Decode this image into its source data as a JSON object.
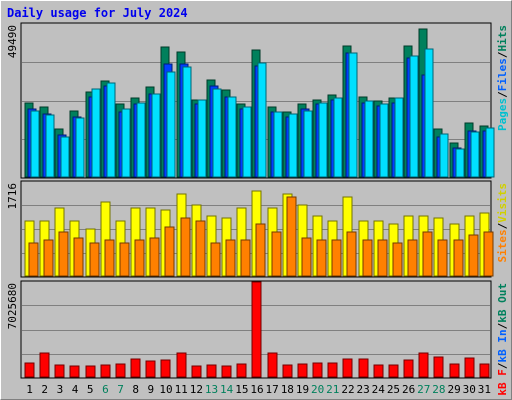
{
  "title": "Daily usage for July 2024",
  "colors": {
    "hits": "#00805c",
    "files": "#0040ff",
    "pages": "#00e0ff",
    "visits": "#ffff00",
    "sites": "#ff8000",
    "kbout": "#ff0000",
    "separator": "#000000",
    "weekend_label": "#00805c"
  },
  "panels": {
    "top": {
      "scale_label": "49490",
      "legend": [
        {
          "text": "Pages",
          "color": "#00c0d0"
        },
        {
          "text": "/",
          "color": "#000000"
        },
        {
          "text": "Files",
          "color": "#0060ff"
        },
        {
          "text": "/",
          "color": "#000000"
        },
        {
          "text": "Hits",
          "color": "#00805c"
        }
      ]
    },
    "mid": {
      "scale_label": "1716",
      "legend": [
        {
          "text": "Sites",
          "color": "#ff8000"
        },
        {
          "text": "/",
          "color": "#000000"
        },
        {
          "text": "Visits",
          "color": "#d0d000"
        }
      ]
    },
    "bottom": {
      "scale_label": "7025680",
      "legend": [
        {
          "text": "kB F",
          "color": "#ff0000"
        },
        {
          "text": "/",
          "color": "#000000"
        },
        {
          "text": "kB In",
          "color": "#0060ff"
        },
        {
          "text": "/",
          "color": "#000000"
        },
        {
          "text": "kB Out",
          "color": "#00805c"
        }
      ]
    }
  },
  "chart_data": {
    "type": "bar",
    "categories": [
      "1",
      "2",
      "3",
      "4",
      "5",
      "6",
      "7",
      "8",
      "9",
      "10",
      "11",
      "12",
      "13",
      "14",
      "15",
      "16",
      "17",
      "18",
      "19",
      "20",
      "21",
      "22",
      "23",
      "24",
      "25",
      "26",
      "27",
      "28",
      "29",
      "30",
      "31"
    ],
    "weekend_days": [
      "6",
      "7",
      "13",
      "14",
      "20",
      "21",
      "27",
      "28"
    ],
    "panels": [
      {
        "name": "Hits / Files / Pages",
        "ylim": [
          0,
          49490
        ],
        "series": [
          {
            "name": "Hits",
            "values": [
              24000,
              22500,
              15500,
              21500,
              27500,
              31000,
              23500,
              25500,
              29000,
              42000,
              40500,
              25000,
              31500,
              28000,
              23500,
              41000,
              22500,
              21000,
              23500,
              25000,
              26500,
              42500,
              26000,
              24500,
              25500,
              42500,
              48000,
              15500,
              11000,
              17500,
              16500
            ]
          },
          {
            "name": "Files",
            "values": [
              22000,
              20500,
              13500,
              19500,
              26000,
              29500,
              21000,
              23500,
              27000,
              36500,
              36500,
              23500,
              29500,
              26000,
              22000,
              36000,
              21000,
              19500,
              22000,
              23500,
              25000,
              40000,
              24000,
              23000,
              24000,
              38500,
              33000,
              13000,
              9500,
              15000,
              15000
            ]
          },
          {
            "name": "Pages",
            "values": [
              21500,
              20000,
              13000,
              19000,
              28500,
              30500,
              22000,
              24000,
              27000,
              34000,
              35500,
              25000,
              28500,
              26000,
              22500,
              37000,
              21000,
              20500,
              21500,
              24000,
              25500,
              40000,
              24500,
              23500,
              25500,
              39000,
              41500,
              14000,
              9000,
              14500,
              16000
            ]
          }
        ]
      },
      {
        "name": "Visits / Sites",
        "ylim": [
          0,
          1716
        ],
        "series": [
          {
            "name": "Visits",
            "values": [
              1000,
              1000,
              1250,
              1000,
              850,
              1350,
              1000,
              1250,
              1250,
              1200,
              1500,
              1300,
              1100,
              1050,
              1250,
              1550,
              1250,
              1500,
              1300,
              1100,
              1000,
              1450,
              1000,
              1000,
              950,
              1100,
              1100,
              1050,
              950,
              1100,
              1150
            ]
          },
          {
            "name": "Sites",
            "values": [
              600,
              650,
              800,
              700,
              600,
              650,
              600,
              650,
              700,
              900,
              1050,
              1000,
              600,
              650,
              650,
              950,
              800,
              1450,
              700,
              650,
              650,
              800,
              650,
              650,
              600,
              650,
              800,
              650,
              650,
              750,
              800
            ]
          }
        ]
      },
      {
        "name": "kB F / kB In / kB Out",
        "ylim": [
          0,
          7025680
        ],
        "series": [
          {
            "name": "kB F",
            "values": [
              1050000,
              1750000,
              900000,
              850000,
              850000,
              900000,
              950000,
              1300000,
              1200000,
              1250000,
              1800000,
              850000,
              900000,
              850000,
              950000,
              7025680,
              1750000,
              900000,
              950000,
              1000000,
              1000000,
              1350000,
              1300000,
              900000,
              900000,
              1250000,
              1750000,
              1500000,
              950000,
              1400000,
              950000
            ]
          }
        ]
      }
    ]
  }
}
